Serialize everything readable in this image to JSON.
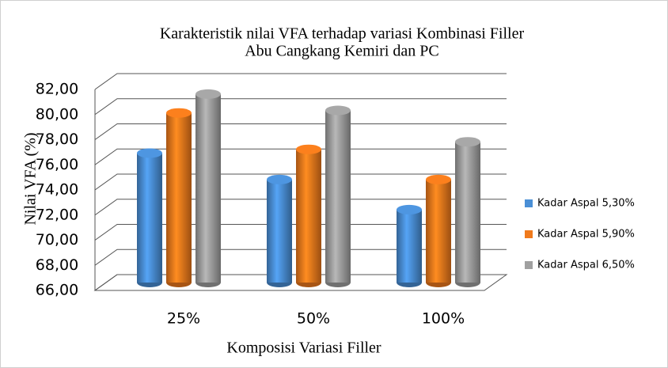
{
  "chart_data": {
    "type": "bar3d",
    "title": [
      "Karakteristik nilai VFA terhadap variasi Kombinasi Filler",
      "Abu Cangkang Kemiri dan PC"
    ],
    "ylabel": "Nilai VFA (%)",
    "xlabel": "Komposisi Variasi Filler",
    "categories": [
      "25%",
      "50%",
      "100%"
    ],
    "series": [
      {
        "name": "Kadar Aspal 5,30%",
        "color": "#4a8fd6",
        "values": [
          76.3,
          74.2,
          71.8
        ]
      },
      {
        "name": "Kadar Aspal 5,90%",
        "color": "#f07a1c",
        "values": [
          79.5,
          76.6,
          74.2
        ]
      },
      {
        "name": "Kadar Aspal 6,50%",
        "color": "#a0a0a0",
        "values": [
          81.0,
          79.7,
          77.2
        ]
      }
    ],
    "ylim": [
      66,
      82
    ],
    "yticks": [
      {
        "value": 66,
        "label": "66,00"
      },
      {
        "value": 68,
        "label": "68,00"
      },
      {
        "value": 70,
        "label": "70,00"
      },
      {
        "value": 72,
        "label": "72,00"
      },
      {
        "value": 74,
        "label": "74,00"
      },
      {
        "value": 76,
        "label": "76,00"
      },
      {
        "value": 78,
        "label": "78,00"
      },
      {
        "value": 80,
        "label": "80,00"
      },
      {
        "value": 82,
        "label": "82,00"
      }
    ],
    "grid": true,
    "legend": "right"
  }
}
